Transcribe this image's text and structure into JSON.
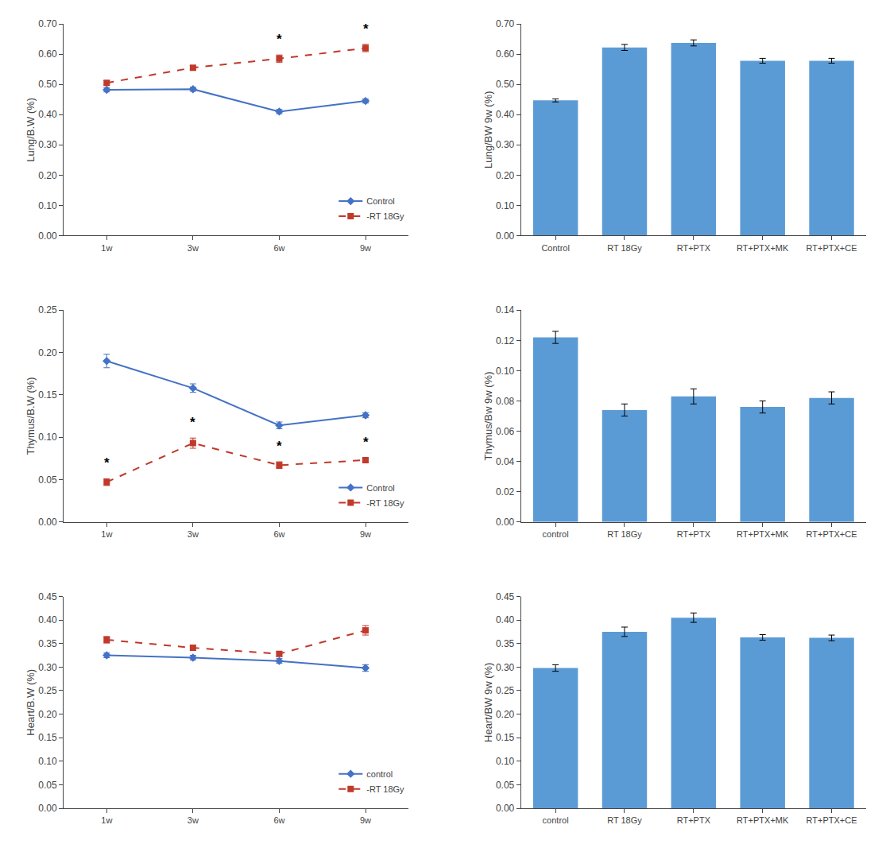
{
  "chart_data": [
    {
      "type": "line",
      "categories": [
        "1w",
        "3w",
        "6w",
        "9w"
      ],
      "series": [
        {
          "name": "Control",
          "color": "#4472C4",
          "marker": "diamond",
          "line_style": "solid",
          "values": [
            0.482,
            0.484,
            0.41,
            0.445
          ],
          "errors": [
            0.007,
            0.007,
            0.007,
            0.007
          ]
        },
        {
          "name": "-RT 18Gy",
          "color": "#C0392B",
          "marker": "square",
          "line_style": "dash",
          "values": [
            0.505,
            0.555,
            0.585,
            0.62
          ],
          "errors": [
            0.007,
            0.007,
            0.012,
            0.012
          ]
        }
      ],
      "annotations": [
        {
          "category": "6w",
          "series": "-RT 18Gy",
          "text": "*"
        },
        {
          "category": "9w",
          "series": "-RT 18Gy",
          "text": "*"
        }
      ],
      "ylabel": "Lung/B.W (%)",
      "ylim": [
        0.0,
        0.7
      ],
      "yticks": [
        {
          "value": 0.0,
          "label": "0.00"
        },
        {
          "value": 0.1,
          "label": "0.10"
        },
        {
          "value": 0.2,
          "label": "0.20"
        },
        {
          "value": 0.3,
          "label": "0.30"
        },
        {
          "value": 0.4,
          "label": "0.40"
        },
        {
          "value": 0.5,
          "label": "0.50"
        },
        {
          "value": 0.6,
          "label": "0.60"
        },
        {
          "value": 0.7,
          "label": "0.70"
        }
      ],
      "legend": "lower right",
      "grid": false
    },
    {
      "type": "bar",
      "categories": [
        "Control",
        "RT 18Gy",
        "RT+PTX",
        "RT+PTX+MK",
        "RT+PTX+CE"
      ],
      "values": [
        0.447,
        0.622,
        0.637,
        0.578,
        0.578
      ],
      "errors": [
        0.005,
        0.01,
        0.01,
        0.008,
        0.008
      ],
      "color": "#5B9BD5",
      "ylabel": "Lung/BW 9w (%)",
      "ylim": [
        0.0,
        0.7
      ],
      "yticks": [
        {
          "value": 0.0,
          "label": "0.00"
        },
        {
          "value": 0.1,
          "label": "0.10"
        },
        {
          "value": 0.2,
          "label": "0.20"
        },
        {
          "value": 0.3,
          "label": "0.30"
        },
        {
          "value": 0.4,
          "label": "0.40"
        },
        {
          "value": 0.5,
          "label": "0.50"
        },
        {
          "value": 0.6,
          "label": "0.60"
        },
        {
          "value": 0.7,
          "label": "0.70"
        }
      ],
      "grid": false
    },
    {
      "type": "line",
      "categories": [
        "1w",
        "3w",
        "6w",
        "9w"
      ],
      "series": [
        {
          "name": "Control",
          "color": "#4472C4",
          "marker": "diamond",
          "line_style": "solid",
          "values": [
            0.19,
            0.158,
            0.114,
            0.126
          ],
          "errors": [
            0.008,
            0.005,
            0.004,
            0.003
          ]
        },
        {
          "name": "-RT 18Gy",
          "color": "#C0392B",
          "marker": "square",
          "line_style": "dash",
          "values": [
            0.047,
            0.093,
            0.067,
            0.073
          ],
          "errors": [
            0.004,
            0.006,
            0.004,
            0.003
          ]
        }
      ],
      "annotations": [
        {
          "category": "1w",
          "series": "-RT 18Gy",
          "text": "*"
        },
        {
          "category": "3w",
          "series": "-RT 18Gy",
          "text": "*"
        },
        {
          "category": "6w",
          "series": "-RT 18Gy",
          "text": "*"
        },
        {
          "category": "9w",
          "series": "-RT 18Gy",
          "text": "*"
        }
      ],
      "ylabel": "Thymus/B.W (%)",
      "ylim": [
        0.0,
        0.25
      ],
      "yticks": [
        {
          "value": 0.0,
          "label": "0.00"
        },
        {
          "value": 0.05,
          "label": "0.05"
        },
        {
          "value": 0.1,
          "label": "0.10"
        },
        {
          "value": 0.15,
          "label": "0.15"
        },
        {
          "value": 0.2,
          "label": "0.20"
        },
        {
          "value": 0.25,
          "label": "0.25"
        }
      ],
      "legend": "lower right",
      "grid": false
    },
    {
      "type": "bar",
      "categories": [
        "control",
        "RT 18Gy",
        "RT+PTX",
        "RT+PTX+MK",
        "RT+PTX+CE"
      ],
      "values": [
        0.122,
        0.074,
        0.083,
        0.076,
        0.082
      ],
      "errors": [
        0.004,
        0.004,
        0.005,
        0.004,
        0.004
      ],
      "color": "#5B9BD5",
      "ylabel": "Thymus/Bw 9w (%)",
      "ylim": [
        0.0,
        0.14
      ],
      "yticks": [
        {
          "value": 0.0,
          "label": "0.00"
        },
        {
          "value": 0.02,
          "label": "0.02"
        },
        {
          "value": 0.04,
          "label": "0.04"
        },
        {
          "value": 0.06,
          "label": "0.06"
        },
        {
          "value": 0.08,
          "label": "0.08"
        },
        {
          "value": 0.1,
          "label": "0.10"
        },
        {
          "value": 0.12,
          "label": "0.12"
        },
        {
          "value": 0.14,
          "label": "0.14"
        }
      ],
      "grid": false
    },
    {
      "type": "line",
      "categories": [
        "1w",
        "3w",
        "6w",
        "9w"
      ],
      "series": [
        {
          "name": "control",
          "color": "#4472C4",
          "marker": "diamond",
          "line_style": "solid",
          "values": [
            0.325,
            0.32,
            0.313,
            0.298
          ],
          "errors": [
            0.005,
            0.005,
            0.005,
            0.007
          ]
        },
        {
          "name": "-RT 18Gy",
          "color": "#C0392B",
          "marker": "square",
          "line_style": "dash",
          "values": [
            0.358,
            0.341,
            0.328,
            0.378
          ],
          "errors": [
            0.007,
            0.005,
            0.005,
            0.01
          ]
        }
      ],
      "ylabel": "Heart/B.W (%)",
      "ylim": [
        0.0,
        0.45
      ],
      "yticks": [
        {
          "value": 0.0,
          "label": "0.00"
        },
        {
          "value": 0.05,
          "label": "0.05"
        },
        {
          "value": 0.1,
          "label": "0.10"
        },
        {
          "value": 0.15,
          "label": "0.15"
        },
        {
          "value": 0.2,
          "label": "0.20"
        },
        {
          "value": 0.25,
          "label": "0.25"
        },
        {
          "value": 0.3,
          "label": "0.30"
        },
        {
          "value": 0.35,
          "label": "0.35"
        },
        {
          "value": 0.4,
          "label": "0.40"
        },
        {
          "value": 0.45,
          "label": "0.45"
        }
      ],
      "legend": "lower right",
      "grid": false
    },
    {
      "type": "bar",
      "categories": [
        "control",
        "RT 18Gy",
        "RT+PTX",
        "RT+PTX+MK",
        "RT+PTX+CE"
      ],
      "values": [
        0.298,
        0.375,
        0.405,
        0.363,
        0.362
      ],
      "errors": [
        0.007,
        0.01,
        0.01,
        0.006,
        0.006
      ],
      "color": "#5B9BD5",
      "ylabel": "Heart/BW 9w (%)",
      "ylim": [
        0.0,
        0.45
      ],
      "yticks": [
        {
          "value": 0.0,
          "label": "0.00"
        },
        {
          "value": 0.05,
          "label": "0.05"
        },
        {
          "value": 0.1,
          "label": "0.10"
        },
        {
          "value": 0.15,
          "label": "0.15"
        },
        {
          "value": 0.2,
          "label": "0.20"
        },
        {
          "value": 0.25,
          "label": "0.25"
        },
        {
          "value": 0.3,
          "label": "0.30"
        },
        {
          "value": 0.35,
          "label": "0.35"
        },
        {
          "value": 0.4,
          "label": "0.40"
        },
        {
          "value": 0.45,
          "label": "0.45"
        }
      ],
      "grid": false
    }
  ]
}
